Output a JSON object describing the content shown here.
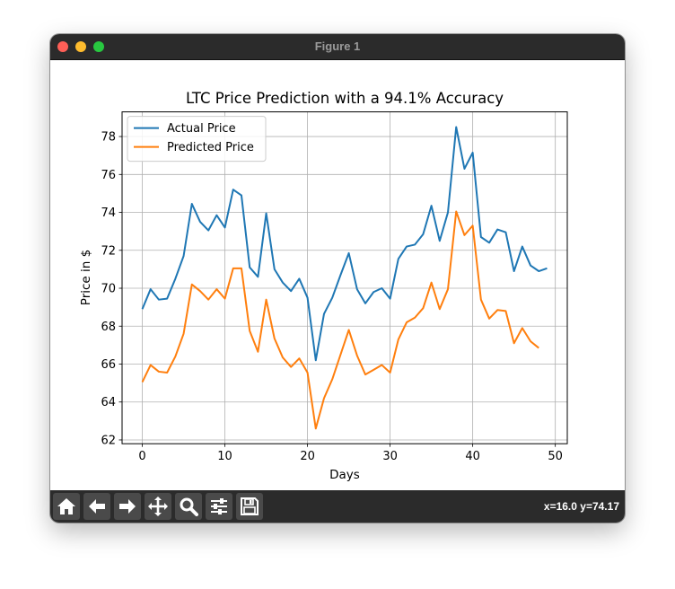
{
  "window": {
    "title": "Figure 1"
  },
  "toolbar": {
    "buttons": [
      {
        "icon": "home-icon"
      },
      {
        "icon": "back-arrow-icon"
      },
      {
        "icon": "forward-arrow-icon"
      },
      {
        "icon": "pan-icon"
      },
      {
        "icon": "zoom-icon"
      },
      {
        "icon": "configure-subplots-icon"
      },
      {
        "icon": "save-icon"
      }
    ],
    "coords": "x=16.0 y=74.17"
  },
  "colors": {
    "actual": "#1f77b4",
    "predicted": "#ff7f0e",
    "chrome": "#2b2b2b"
  },
  "chart_data": {
    "type": "line",
    "title": "LTC Price Prediction with a 94.1% Accuracy",
    "xlabel": "Days",
    "ylabel": "Price in $",
    "xlim": [
      -2.45,
      51.45
    ],
    "ylim": [
      61.8,
      79.3
    ],
    "xticks": [
      0,
      10,
      20,
      30,
      40,
      50
    ],
    "yticks": [
      62,
      64,
      66,
      68,
      70,
      72,
      74,
      76,
      78
    ],
    "grid": true,
    "legend_position": "upper left",
    "series": [
      {
        "name": "Actual Price",
        "color": "#1f77b4",
        "x": [
          0,
          1,
          2,
          3,
          4,
          5,
          6,
          7,
          8,
          9,
          10,
          11,
          12,
          13,
          14,
          15,
          16,
          17,
          18,
          19,
          20,
          21,
          22,
          23,
          24,
          25,
          26,
          27,
          28,
          29,
          30,
          31,
          32,
          33,
          34,
          35,
          36,
          37,
          38,
          39,
          40,
          41,
          42,
          43,
          44,
          45,
          46,
          47,
          48,
          49
        ],
        "values": [
          68.9,
          69.95,
          69.4,
          69.45,
          70.5,
          71.7,
          74.45,
          73.5,
          73.05,
          73.85,
          73.2,
          75.2,
          74.9,
          71.1,
          70.6,
          73.95,
          71.0,
          70.3,
          69.85,
          70.5,
          69.5,
          66.2,
          68.65,
          69.5,
          70.7,
          71.85,
          69.95,
          69.2,
          69.8,
          70.0,
          69.45,
          71.55,
          72.2,
          72.3,
          72.85,
          74.35,
          72.5,
          74.0,
          78.5,
          76.3,
          77.15,
          72.7,
          72.4,
          73.1,
          72.95,
          70.9,
          72.2,
          71.2,
          70.9,
          71.05
        ]
      },
      {
        "name": "Predicted Price",
        "color": "#ff7f0e",
        "x": [
          0,
          1,
          2,
          3,
          4,
          5,
          6,
          7,
          8,
          9,
          10,
          11,
          12,
          13,
          14,
          15,
          16,
          17,
          18,
          19,
          20,
          21,
          22,
          23,
          24,
          25,
          26,
          27,
          28,
          29,
          30,
          31,
          32,
          33,
          34,
          35,
          36,
          37,
          38,
          39,
          40,
          41,
          42,
          43,
          44,
          45,
          46,
          47,
          48
        ],
        "values": [
          65.05,
          65.95,
          65.6,
          65.55,
          66.4,
          67.6,
          70.2,
          69.85,
          69.4,
          69.95,
          69.45,
          71.05,
          71.05,
          67.75,
          66.65,
          69.4,
          67.35,
          66.35,
          65.85,
          66.3,
          65.55,
          62.6,
          64.2,
          65.2,
          66.5,
          67.8,
          66.45,
          65.45,
          65.7,
          65.95,
          65.55,
          67.3,
          68.2,
          68.45,
          68.95,
          70.3,
          68.9,
          69.95,
          74.05,
          72.8,
          73.3,
          69.4,
          68.4,
          68.85,
          68.8,
          67.1,
          67.9,
          67.2,
          66.85
        ]
      }
    ]
  }
}
